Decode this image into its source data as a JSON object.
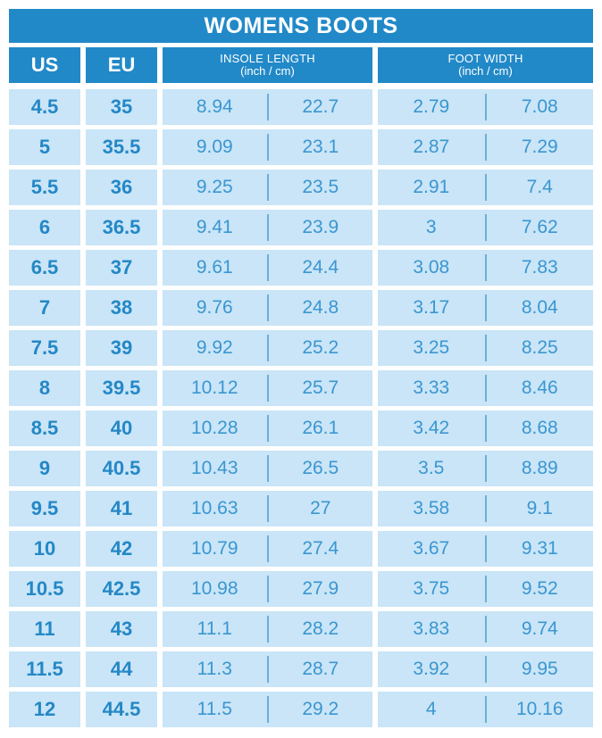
{
  "title": "WOMENS BOOTS",
  "colors": {
    "header_blue": "#2289c8",
    "cell_light_blue": "#c9e5f7",
    "size_text_blue": "#2487c6",
    "value_text_blue": "#3b96d1",
    "divider_blue": "#6bafdb",
    "background": "#ffffff"
  },
  "table": {
    "headers": {
      "us": "US",
      "eu": "EU",
      "insole": {
        "label": "INSOLE LENGTH",
        "unit": "(inch / cm)"
      },
      "width": {
        "label": "FOOT WIDTH",
        "unit": "(inch / cm)"
      }
    },
    "rows": [
      {
        "us": "4.5",
        "eu": "35",
        "insole_inch": "8.94",
        "insole_cm": "22.7",
        "width_inch": "2.79",
        "width_cm": "7.08"
      },
      {
        "us": "5",
        "eu": "35.5",
        "insole_inch": "9.09",
        "insole_cm": "23.1",
        "width_inch": "2.87",
        "width_cm": "7.29"
      },
      {
        "us": "5.5",
        "eu": "36",
        "insole_inch": "9.25",
        "insole_cm": "23.5",
        "width_inch": "2.91",
        "width_cm": "7.4"
      },
      {
        "us": "6",
        "eu": "36.5",
        "insole_inch": "9.41",
        "insole_cm": "23.9",
        "width_inch": "3",
        "width_cm": "7.62"
      },
      {
        "us": "6.5",
        "eu": "37",
        "insole_inch": "9.61",
        "insole_cm": "24.4",
        "width_inch": "3.08",
        "width_cm": "7.83"
      },
      {
        "us": "7",
        "eu": "38",
        "insole_inch": "9.76",
        "insole_cm": "24.8",
        "width_inch": "3.17",
        "width_cm": "8.04"
      },
      {
        "us": "7.5",
        "eu": "39",
        "insole_inch": "9.92",
        "insole_cm": "25.2",
        "width_inch": "3.25",
        "width_cm": "8.25"
      },
      {
        "us": "8",
        "eu": "39.5",
        "insole_inch": "10.12",
        "insole_cm": "25.7",
        "width_inch": "3.33",
        "width_cm": "8.46"
      },
      {
        "us": "8.5",
        "eu": "40",
        "insole_inch": "10.28",
        "insole_cm": "26.1",
        "width_inch": "3.42",
        "width_cm": "8.68"
      },
      {
        "us": "9",
        "eu": "40.5",
        "insole_inch": "10.43",
        "insole_cm": "26.5",
        "width_inch": "3.5",
        "width_cm": "8.89"
      },
      {
        "us": "9.5",
        "eu": "41",
        "insole_inch": "10.63",
        "insole_cm": "27",
        "width_inch": "3.58",
        "width_cm": "9.1"
      },
      {
        "us": "10",
        "eu": "42",
        "insole_inch": "10.79",
        "insole_cm": "27.4",
        "width_inch": "3.67",
        "width_cm": "9.31"
      },
      {
        "us": "10.5",
        "eu": "42.5",
        "insole_inch": "10.98",
        "insole_cm": "27.9",
        "width_inch": "3.75",
        "width_cm": "9.52"
      },
      {
        "us": "11",
        "eu": "43",
        "insole_inch": "11.1",
        "insole_cm": "28.2",
        "width_inch": "3.83",
        "width_cm": "9.74"
      },
      {
        "us": "11.5",
        "eu": "44",
        "insole_inch": "11.3",
        "insole_cm": "28.7",
        "width_inch": "3.92",
        "width_cm": "9.95"
      },
      {
        "us": "12",
        "eu": "44.5",
        "insole_inch": "11.5",
        "insole_cm": "29.2",
        "width_inch": "4",
        "width_cm": "10.16"
      }
    ]
  },
  "chart_data": {
    "type": "table",
    "title": "WOMENS BOOTS",
    "columns": [
      "US",
      "EU",
      "Insole length (inch)",
      "Insole length (cm)",
      "Foot width (inch)",
      "Foot width (cm)"
    ],
    "rows": [
      [
        4.5,
        35,
        8.94,
        22.7,
        2.79,
        7.08
      ],
      [
        5,
        35.5,
        9.09,
        23.1,
        2.87,
        7.29
      ],
      [
        5.5,
        36,
        9.25,
        23.5,
        2.91,
        7.4
      ],
      [
        6,
        36.5,
        9.41,
        23.9,
        3,
        7.62
      ],
      [
        6.5,
        37,
        9.61,
        24.4,
        3.08,
        7.83
      ],
      [
        7,
        38,
        9.76,
        24.8,
        3.17,
        8.04
      ],
      [
        7.5,
        39,
        9.92,
        25.2,
        3.25,
        8.25
      ],
      [
        8,
        39.5,
        10.12,
        25.7,
        3.33,
        8.46
      ],
      [
        8.5,
        40,
        10.28,
        26.1,
        3.42,
        8.68
      ],
      [
        9,
        40.5,
        10.43,
        26.5,
        3.5,
        8.89
      ],
      [
        9.5,
        41,
        10.63,
        27,
        3.58,
        9.1
      ],
      [
        10,
        42,
        10.79,
        27.4,
        3.67,
        9.31
      ],
      [
        10.5,
        42.5,
        10.98,
        27.9,
        3.75,
        9.52
      ],
      [
        11,
        43,
        11.1,
        28.2,
        3.83,
        9.74
      ],
      [
        11.5,
        44,
        11.3,
        28.7,
        3.92,
        9.95
      ],
      [
        12,
        44.5,
        11.5,
        29.2,
        4,
        10.16
      ]
    ]
  }
}
